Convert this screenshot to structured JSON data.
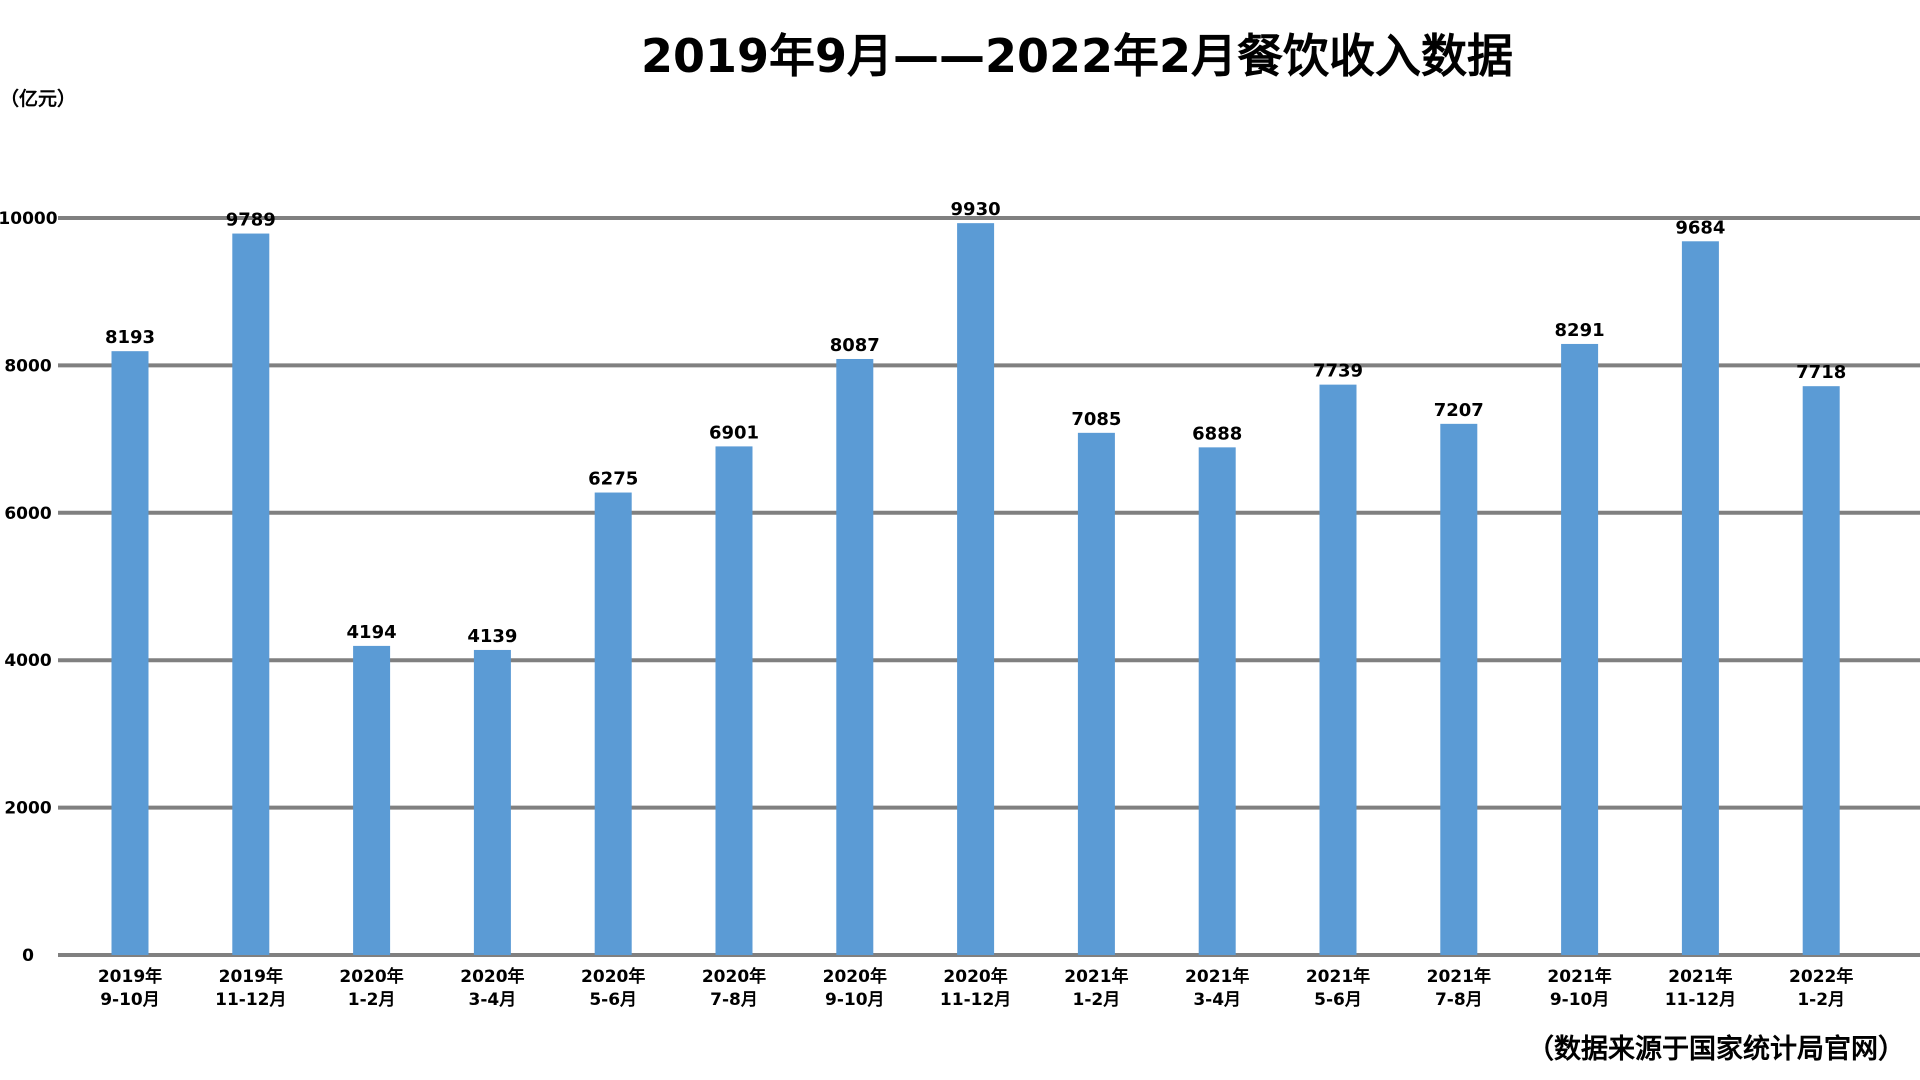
{
  "chart_data": {
    "type": "bar",
    "title": "2019年9月——2022年2月餐饮收入数据",
    "ylabel": "（亿元）",
    "source": "（数据来源于国家统计局官网）",
    "ylim": [
      0,
      10000
    ],
    "yticks": [
      0,
      2000,
      4000,
      6000,
      8000,
      10000
    ],
    "grid": true,
    "bar_color": "#5b9bd5",
    "grid_color": "#808080",
    "categories": [
      [
        "2019年",
        "9-10月"
      ],
      [
        "2019年",
        "11-12月"
      ],
      [
        "2020年",
        "1-2月"
      ],
      [
        "2020年",
        "3-4月"
      ],
      [
        "2020年",
        "5-6月"
      ],
      [
        "2020年",
        "7-8月"
      ],
      [
        "2020年",
        "9-10月"
      ],
      [
        "2020年",
        "11-12月"
      ],
      [
        "2021年",
        "1-2月"
      ],
      [
        "2021年",
        "3-4月"
      ],
      [
        "2021年",
        "5-6月"
      ],
      [
        "2021年",
        "7-8月"
      ],
      [
        "2021年",
        "9-10月"
      ],
      [
        "2021年",
        "11-12月"
      ],
      [
        "2022年",
        "1-2月"
      ]
    ],
    "values": [
      8193,
      9789,
      4194,
      4139,
      6275,
      6901,
      8087,
      9930,
      7085,
      6888,
      7739,
      7207,
      8291,
      9684,
      7718
    ]
  }
}
